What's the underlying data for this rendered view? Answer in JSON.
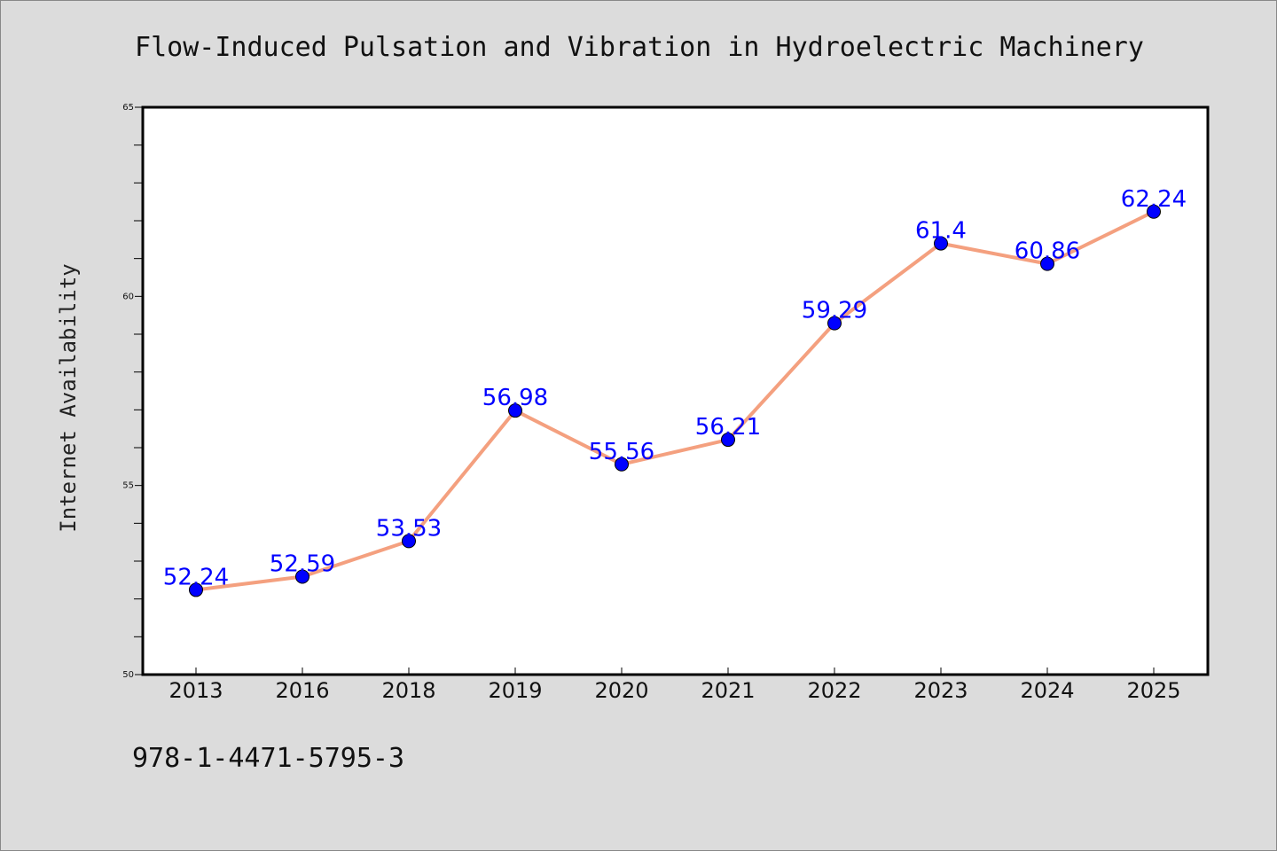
{
  "chart_data": {
    "type": "line",
    "title": "Flow-Induced Pulsation and Vibration in Hydroelectric Machinery",
    "xlabel": "",
    "ylabel": "Internet Availability",
    "categories": [
      "2013",
      "2016",
      "2018",
      "2019",
      "2020",
      "2021",
      "2022",
      "2023",
      "2024",
      "2025"
    ],
    "series": [
      {
        "values": [
          52.24,
          52.59,
          53.53,
          56.98,
          55.56,
          56.21,
          59.29,
          61.4,
          60.86,
          62.24
        ],
        "labels": [
          "52.24",
          "52.59",
          "53.53",
          "56.98",
          "55.56",
          "56.21",
          "59.29",
          "61.4",
          "60.86",
          "62.24"
        ]
      }
    ],
    "ylim": [
      50,
      65
    ],
    "yticks": [
      "50",
      "55",
      "60",
      "65"
    ],
    "grid": false,
    "legend": "none",
    "colors": {
      "line": "#f4a07f",
      "marker": "#0000ff",
      "data_label": "#0000ff",
      "background": "#dcdcdc",
      "plot_area": "#ffffff"
    }
  },
  "footer": {
    "text": "978-1-4471-5795-3"
  }
}
